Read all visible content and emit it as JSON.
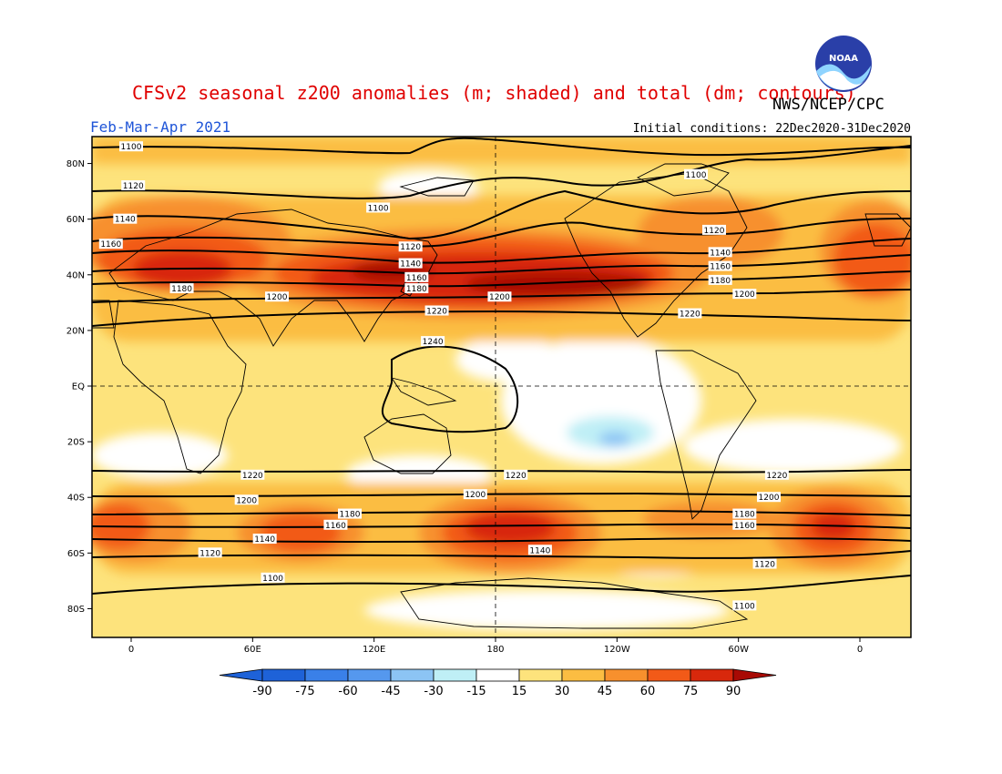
{
  "header": {
    "title": "CFSv2 seasonal z200 anomalies (m; shaded) and total (dm; contours)",
    "agency": "NWS/NCEP/CPC",
    "season": "Feb-Mar-Apr 2021",
    "init": "Initial conditions: 22Dec2020-31Dec2020",
    "logo_text": "NOAA"
  },
  "colors": {
    "title": "#e00000",
    "season": "#1f55d8",
    "neg90": "#1e62d8",
    "neg75": "#3a80e8",
    "neg60": "#5598ee",
    "neg45": "#8cc4f4",
    "neg30": "#bfeff6",
    "neutral": "#ffffff",
    "pos15": "#fde37c",
    "pos30": "#fbbd42",
    "pos45": "#f7902d",
    "pos60": "#f25a18",
    "pos75": "#d8280c",
    "pos90": "#a80a04"
  },
  "axes": {
    "lat_ticks": [
      "80N",
      "60N",
      "40N",
      "20N",
      "EQ",
      "20S",
      "40S",
      "60S",
      "80S"
    ],
    "lon_ticks": [
      "0",
      "60E",
      "120E",
      "180",
      "120W",
      "60W",
      "0"
    ]
  },
  "colorbar": {
    "labels": [
      "-90",
      "-75",
      "-60",
      "-45",
      "-30",
      "-15",
      "15",
      "30",
      "45",
      "60",
      "75",
      "90"
    ]
  },
  "contour_labels": [
    {
      "text": "1100",
      "lon": 0,
      "lat": 86
    },
    {
      "text": "1120",
      "lon": 1,
      "lat": 72
    },
    {
      "text": "1140",
      "lon": -3,
      "lat": 60
    },
    {
      "text": "1160",
      "lon": -10,
      "lat": 51
    },
    {
      "text": "1180",
      "lon": 25,
      "lat": 35
    },
    {
      "text": "1200",
      "lon": 72,
      "lat": 32
    },
    {
      "text": "1100",
      "lon": 122,
      "lat": 64
    },
    {
      "text": "1120",
      "lon": 138,
      "lat": 50
    },
    {
      "text": "1140",
      "lon": 138,
      "lat": 44
    },
    {
      "text": "1160",
      "lon": 141,
      "lat": 39
    },
    {
      "text": "1180",
      "lon": 141,
      "lat": 35
    },
    {
      "text": "1200",
      "lon": 182,
      "lat": 32
    },
    {
      "text": "1220",
      "lon": 151,
      "lat": 27
    },
    {
      "text": "1240",
      "lon": 149,
      "lat": 16
    },
    {
      "text": "1100",
      "lon": 279,
      "lat": 76
    },
    {
      "text": "1120",
      "lon": 288,
      "lat": 56
    },
    {
      "text": "1140",
      "lon": 291,
      "lat": 48
    },
    {
      "text": "1160",
      "lon": 291,
      "lat": 43
    },
    {
      "text": "1180",
      "lon": 291,
      "lat": 38
    },
    {
      "text": "1200",
      "lon": 303,
      "lat": 33
    },
    {
      "text": "1220",
      "lon": 276,
      "lat": 26
    },
    {
      "text": "1220",
      "lon": 60,
      "lat": -32
    },
    {
      "text": "1220",
      "lon": 190,
      "lat": -32
    },
    {
      "text": "1220",
      "lon": 319,
      "lat": -32
    },
    {
      "text": "1200",
      "lon": 57,
      "lat": -41
    },
    {
      "text": "1200",
      "lon": 170,
      "lat": -39
    },
    {
      "text": "1200",
      "lon": 315,
      "lat": -40
    },
    {
      "text": "1180",
      "lon": 108,
      "lat": -46
    },
    {
      "text": "1180",
      "lon": 303,
      "lat": -46
    },
    {
      "text": "1160",
      "lon": 101,
      "lat": -50
    },
    {
      "text": "1160",
      "lon": 303,
      "lat": -50
    },
    {
      "text": "1140",
      "lon": 66,
      "lat": -55
    },
    {
      "text": "1140",
      "lon": 202,
      "lat": -59
    },
    {
      "text": "1120",
      "lon": 39,
      "lat": -60
    },
    {
      "text": "1120",
      "lon": 313,
      "lat": -64
    },
    {
      "text": "1100",
      "lon": 70,
      "lat": -69
    },
    {
      "text": "1100",
      "lon": 303,
      "lat": -79
    }
  ]
}
